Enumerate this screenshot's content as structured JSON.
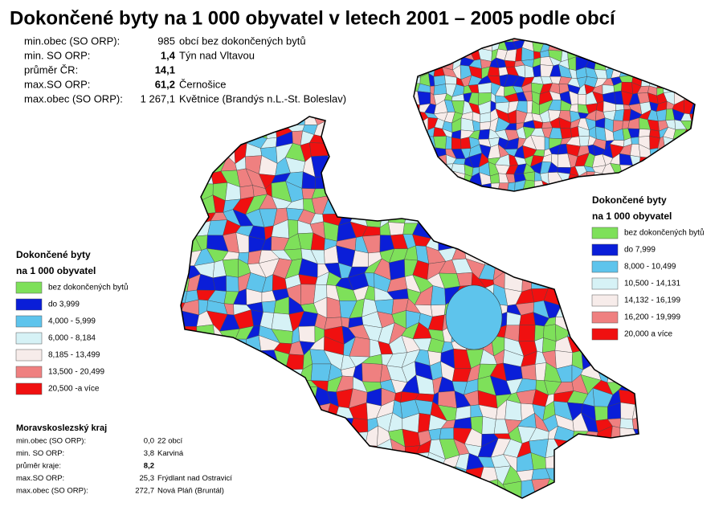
{
  "title": "Dokončené byty na 1 000 obyvatel v letech 2001 – 2005 podle obcí",
  "stats_cr": {
    "rows": [
      [
        "min.obec (SO ORP):",
        "985",
        "obcí bez dokončených bytů"
      ],
      [
        "min. SO ORP:",
        "1,4",
        "Týn nad Vltavou"
      ],
      [
        "průměr ČR:",
        "14,1"
      ],
      [
        "max.SO ORP:",
        "61,2",
        "Černošice"
      ],
      [
        "max.obec (SO ORP):",
        "1 267,1",
        "Květnice (Brandýs n.L.-St. Boleslav)"
      ]
    ]
  },
  "legend_kraj": {
    "title": [
      "Dokončené byty",
      "na 1 000 obyvatel"
    ],
    "items": [
      {
        "label": "bez dokončených bytů",
        "color": "#7ee05a"
      },
      {
        "label": "do 3,999",
        "color": "#0a1ed8"
      },
      {
        "label": "4,000 -   5,999",
        "color": "#5ec4ec"
      },
      {
        "label": "6,000 -   8,184",
        "color": "#d6f2f6"
      },
      {
        "label": "8,185 - 13,499",
        "color": "#f7ecea"
      },
      {
        "label": "13,500 - 20,499",
        "color": "#ef8080"
      },
      {
        "label": "20,500 -a více",
        "color": "#f01010"
      }
    ]
  },
  "legend_cr": {
    "title": [
      "Dokončené byty",
      "na 1 000 obyvatel"
    ],
    "items": [
      {
        "label": "bez dokončených bytů",
        "color": "#7ee05a"
      },
      {
        "label": "do 7,999",
        "color": "#0a1ed8"
      },
      {
        "label": "8,000 - 10,499",
        "color": "#5ec4ec"
      },
      {
        "label": "10,500 - 14,131",
        "color": "#d6f2f6"
      },
      {
        "label": "14,132 - 16,199",
        "color": "#f7ecea"
      },
      {
        "label": "16,200 - 19,999",
        "color": "#ef8080"
      },
      {
        "label": "20,000 a více",
        "color": "#f01010"
      }
    ]
  },
  "stats_kraj": {
    "title": "Moravskoslezský kraj",
    "rows": [
      [
        "min.obec (SO ORP):",
        "0,0",
        "22 obcí"
      ],
      [
        "min. SO ORP:",
        "3,8",
        "Karviná"
      ],
      [
        "průměr kraje:",
        "8,2"
      ],
      [
        "max.SO ORP:",
        "25,3",
        "Frýdlant nad Ostravicí"
      ],
      [
        "max.obec (SO ORP):",
        "272,7",
        "Nová Pláň (Bruntál)"
      ]
    ]
  }
}
